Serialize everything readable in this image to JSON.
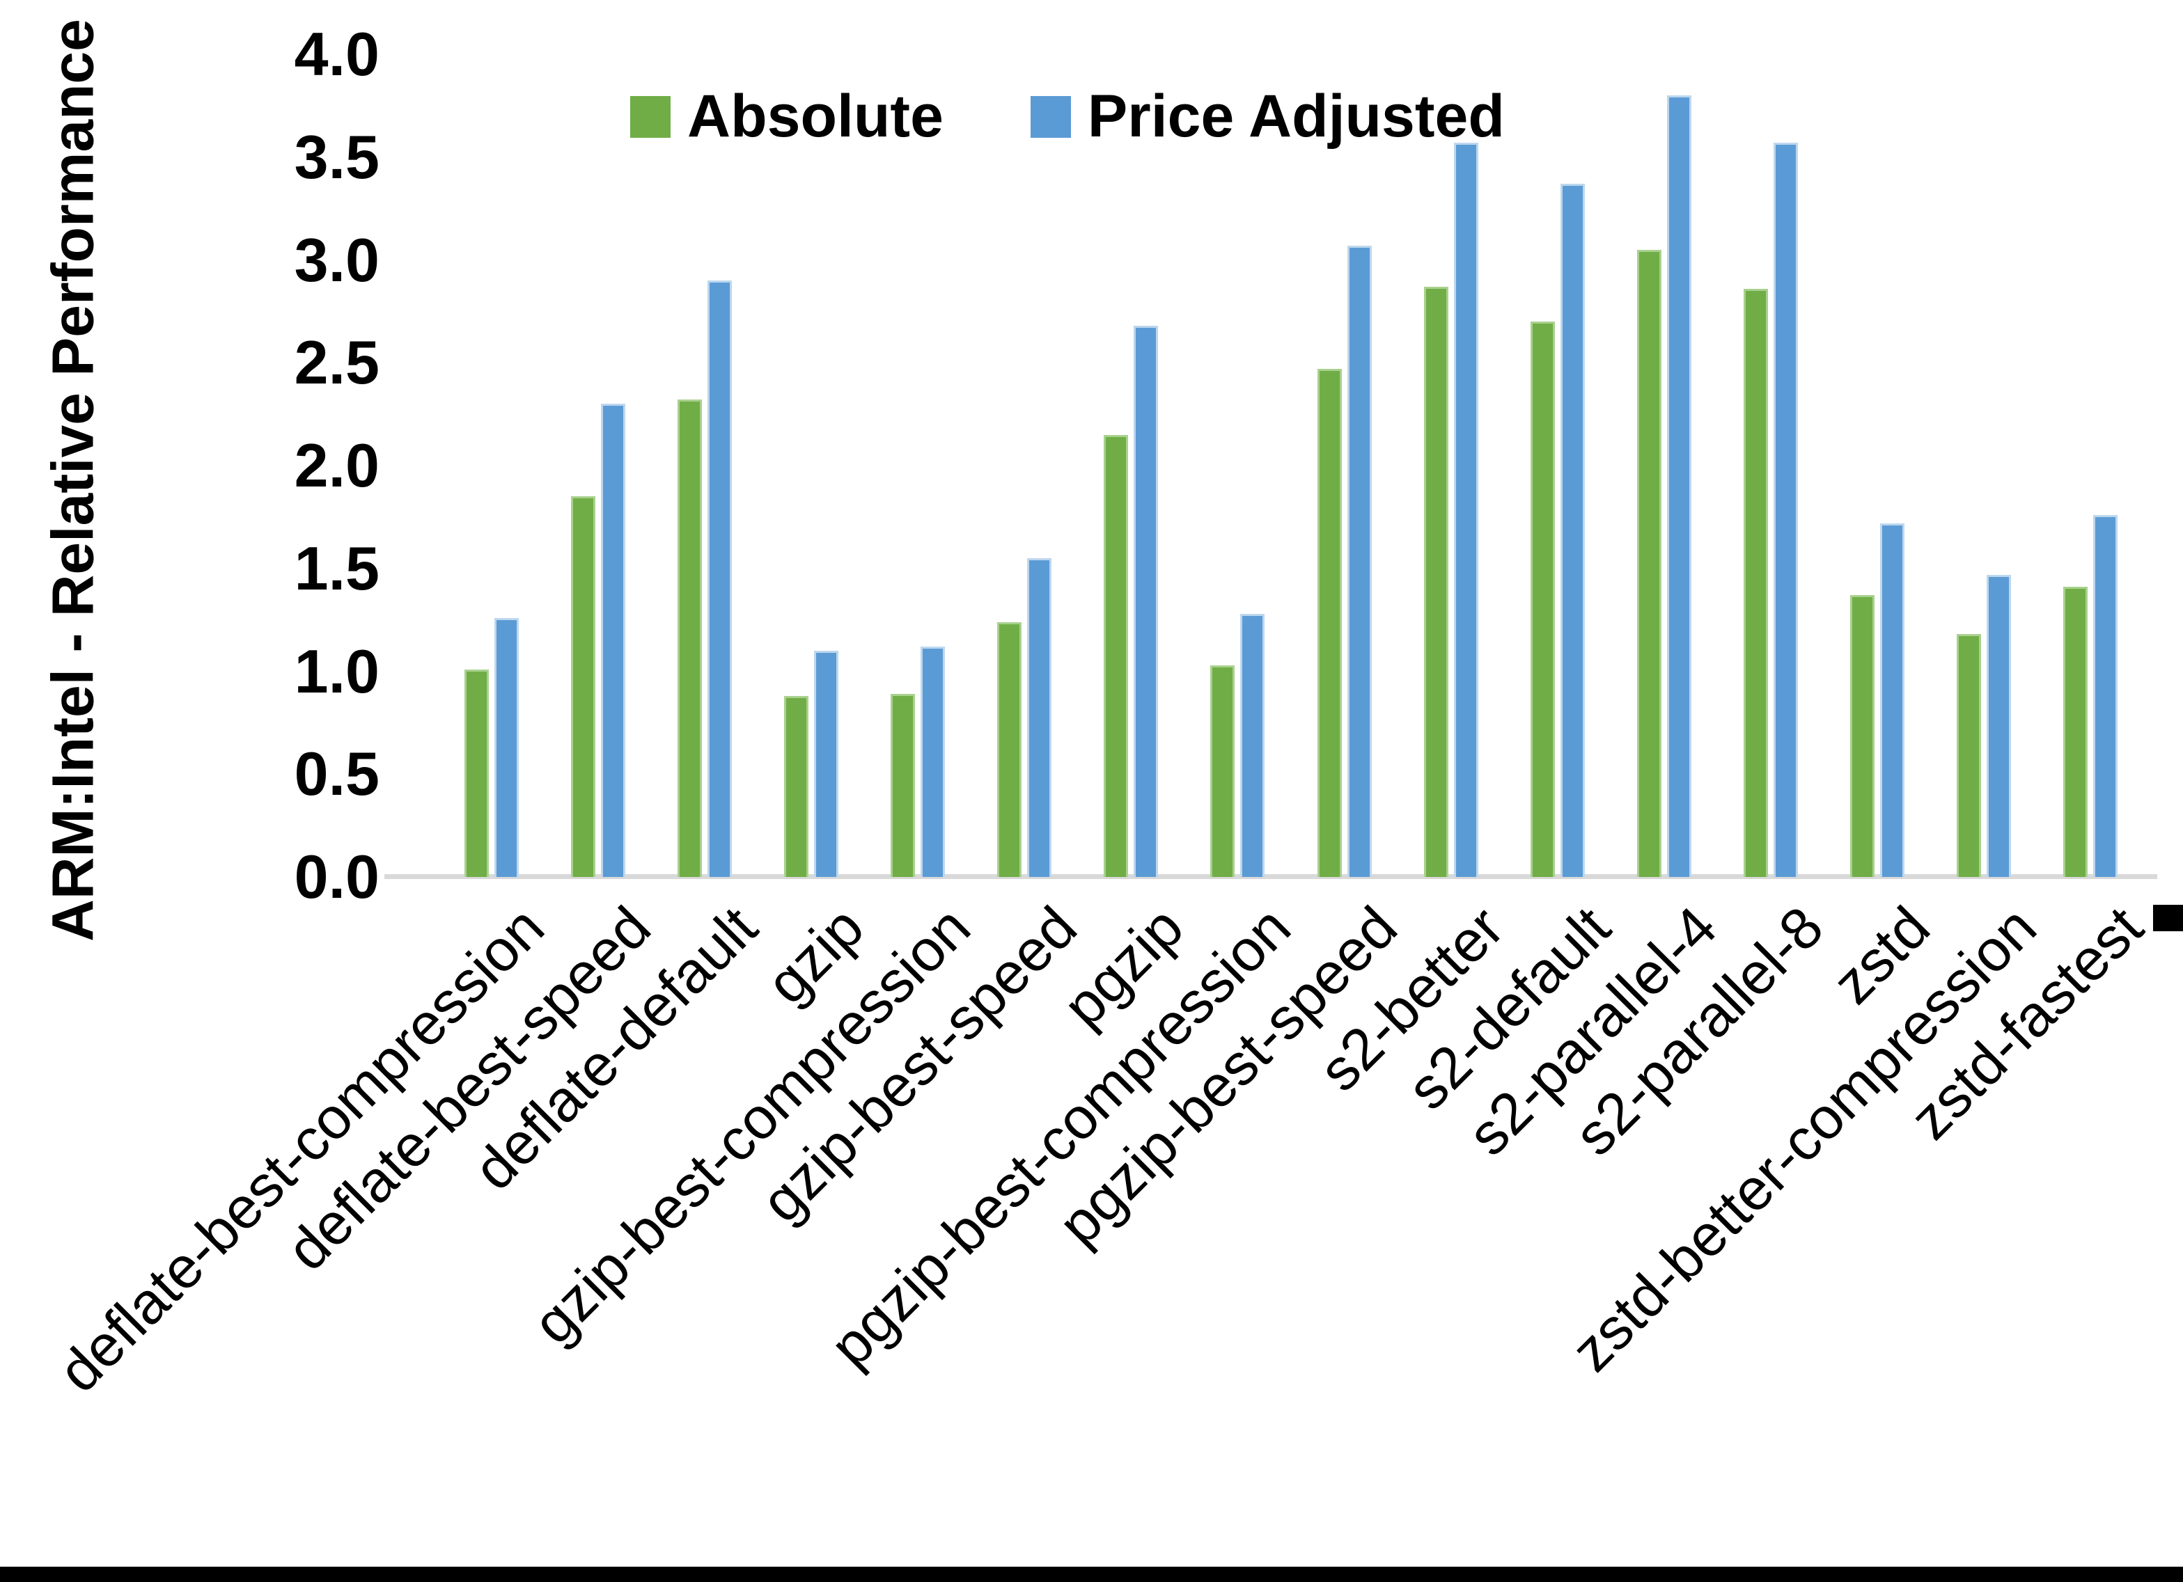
{
  "chart_data": {
    "type": "bar",
    "title": "",
    "xlabel": "",
    "ylabel": "ARM:Intel - Relative Performance",
    "ylim": [
      0.0,
      4.0
    ],
    "ytick_step": 0.5,
    "ytick_labels": [
      "0.0",
      "0.5",
      "1.0",
      "1.5",
      "2.0",
      "2.5",
      "3.0",
      "3.5",
      "4.0"
    ],
    "grid": false,
    "legend_position": "top-center",
    "categories": [
      "deflate-best-compression",
      "deflate-best-speed",
      "deflate-default",
      "gzip",
      "gzip-best-compression",
      "gzip-best-speed",
      "pgzip",
      "pgzip-best-compression",
      "pgzip-best-speed",
      "s2-better",
      "s2-default",
      "s2-parallel-4",
      "s2-parallel-8",
      "zstd",
      "zstd-better-compression",
      "zstd-fastest"
    ],
    "series": [
      {
        "name": "Absolute",
        "color": "#70AD47",
        "border_color": "#A9D18E",
        "values": [
          1.01,
          1.85,
          2.32,
          0.88,
          0.89,
          1.24,
          2.15,
          1.03,
          2.47,
          2.87,
          2.7,
          3.05,
          2.86,
          1.37,
          1.18,
          1.41
        ]
      },
      {
        "name": "Price Adjusted",
        "color": "#5B9BD5",
        "border_color": "#BDD7EE",
        "values": [
          1.26,
          2.3,
          2.9,
          1.1,
          1.12,
          1.55,
          2.68,
          1.28,
          3.07,
          3.57,
          3.37,
          3.8,
          3.57,
          1.72,
          1.47,
          1.76
        ]
      }
    ]
  },
  "colors": {
    "axis_line": "#d9d9d9",
    "text": "#000000",
    "background": "#ffffff",
    "frame": "#000000"
  }
}
